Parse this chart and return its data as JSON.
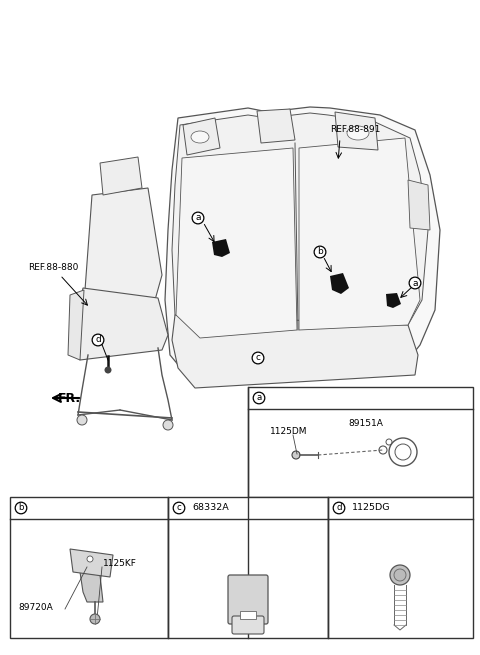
{
  "bg_color": "#ffffff",
  "fig_width": 4.8,
  "fig_height": 6.55,
  "dpi": 100,
  "ref1_label": "REF.88-891",
  "ref2_label": "REF.88-880",
  "fr_label": "FR.",
  "part_a1": "1125DM",
  "part_a2": "89151A",
  "part_b1": "1125KF",
  "part_b2": "89720A",
  "part_c": "68332A",
  "part_d": "1125DG",
  "seat_line_color": "#555555",
  "hardware_color": "#111111",
  "panel_border": "#333333",
  "text_color": "#000000",
  "seat_fill": "#f8f8f8"
}
